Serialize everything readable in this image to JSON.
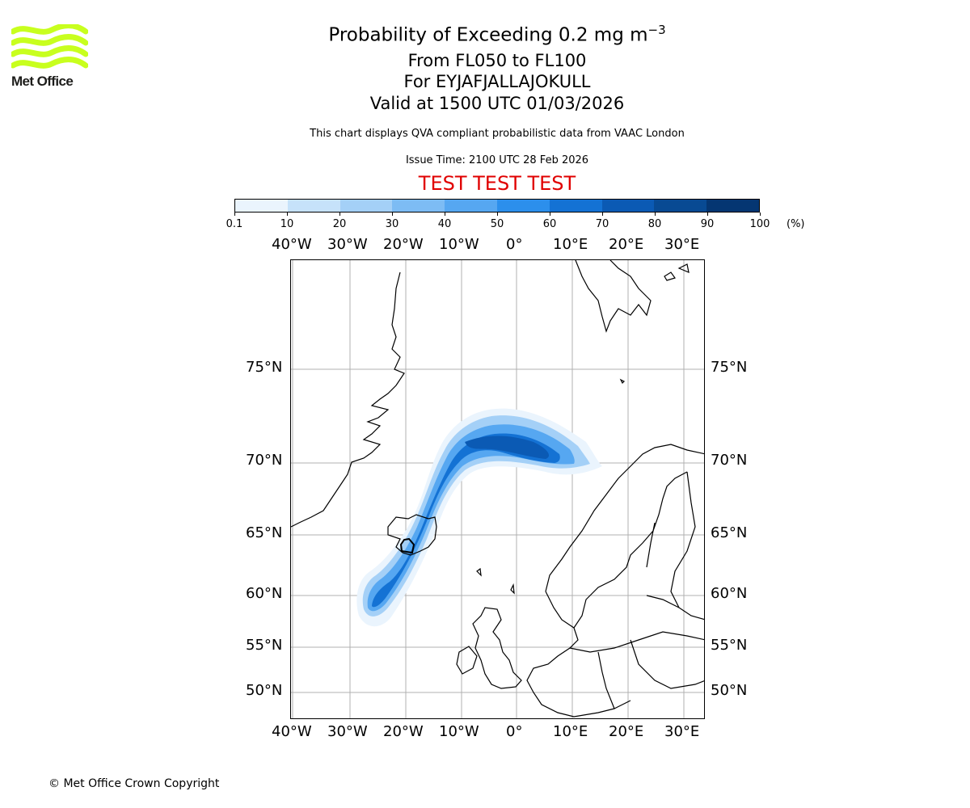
{
  "logo": {
    "text": "Met Office",
    "color": "#c8ff1e"
  },
  "titles": {
    "main_prefix": "Probability of Exceeding 0.2 mg m",
    "main_exponent": "−3",
    "range": "From FL050 to FL100",
    "volcano": "For EYJAFJALLAJOKULL",
    "valid": "Valid at 1500 UTC 01/03/2026",
    "subtitle": "This chart displays QVA compliant probabilistic data from VAAC London",
    "issue": "Issue Time: 2100 UTC 28 Feb 2026",
    "test_banner": "TEST TEST TEST"
  },
  "colorbar": {
    "unit": "(%)",
    "tick_labels": [
      "0.1",
      "10",
      "20",
      "30",
      "40",
      "50",
      "60",
      "70",
      "80",
      "90",
      "100"
    ],
    "colors": [
      "#eaf4fd",
      "#c6e2fa",
      "#a4d0f7",
      "#7dbcf4",
      "#56a7f1",
      "#2c8fec",
      "#1472d4",
      "#0b5ab4",
      "#084a93",
      "#053672"
    ]
  },
  "map": {
    "lon_labels": [
      "40°W",
      "30°W",
      "20°W",
      "10°W",
      "0°",
      "10°E",
      "20°E",
      "30°E"
    ],
    "lat_labels": [
      "75°N",
      "70°N",
      "65°N",
      "60°N",
      "55°N",
      "50°N"
    ]
  },
  "footer": {
    "copyright": "© Met Office Crown Copyright"
  }
}
